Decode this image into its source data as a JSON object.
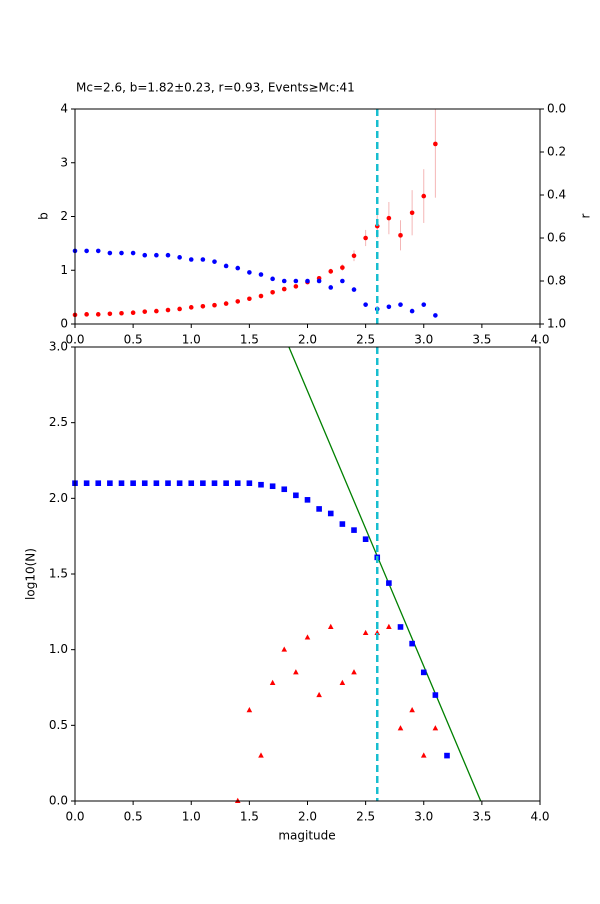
{
  "chart_data": [
    {
      "type": "scatter",
      "title": "Mc=2.6, b=1.82±0.23, r=0.93, Events≥Mc:41",
      "ylabel": "b",
      "y2label": "r",
      "xlim": [
        0,
        4
      ],
      "xticks": [
        {
          "value": 0,
          "label": "0.0"
        },
        {
          "value": 0.5,
          "label": "0.5"
        },
        {
          "value": 1,
          "label": "1.0"
        },
        {
          "value": 1.5,
          "label": "1.5"
        },
        {
          "value": 2,
          "label": "2.0"
        },
        {
          "value": 2.5,
          "label": "2.5"
        },
        {
          "value": 3,
          "label": "3.0"
        },
        {
          "value": 3.5,
          "label": "3.5"
        },
        {
          "value": 4,
          "label": "4.0"
        }
      ],
      "ylim": [
        0,
        4
      ],
      "yticks": [
        0,
        1,
        2,
        3,
        4
      ],
      "y2lim": [
        1,
        0
      ],
      "y2ticks": [
        {
          "value": 0,
          "label": "0.0"
        },
        {
          "value": 0.2,
          "label": "0.2"
        },
        {
          "value": 0.4,
          "label": "0.4"
        },
        {
          "value": 0.6,
          "label": "0.6"
        },
        {
          "value": 0.8,
          "label": "0.8"
        },
        {
          "value": 1,
          "label": "1.0"
        }
      ],
      "vline": 2.6,
      "vline_color": "#17becf",
      "series": [
        {
          "color": "#ff0000",
          "marker": "circle",
          "error_color": "#f4b6b6",
          "x": [
            0,
            0.1,
            0.2,
            0.3,
            0.4,
            0.5,
            0.6,
            0.7,
            0.8,
            0.9,
            1,
            1.1,
            1.2,
            1.3,
            1.4,
            1.5,
            1.6,
            1.7,
            1.8,
            1.9,
            2,
            2.1,
            2.2,
            2.3,
            2.4,
            2.5,
            2.6,
            2.7,
            2.8,
            2.9,
            3,
            3.1
          ],
          "values": [
            0.17,
            0.18,
            0.18,
            0.19,
            0.2,
            0.21,
            0.23,
            0.24,
            0.26,
            0.28,
            0.31,
            0.33,
            0.35,
            0.38,
            0.42,
            0.47,
            0.52,
            0.59,
            0.65,
            0.7,
            0.78,
            0.85,
            0.98,
            1.05,
            1.27,
            1.6,
            1.82,
            1.97,
            1.65,
            2.07,
            2.38,
            3.35
          ],
          "errors": [
            0.01,
            0.01,
            0.01,
            0.01,
            0.01,
            0.01,
            0.01,
            0.01,
            0.01,
            0.01,
            0.01,
            0.01,
            0.01,
            0.02,
            0.02,
            0.02,
            0.02,
            0.03,
            0.03,
            0.03,
            0.04,
            0.04,
            0.05,
            0.06,
            0.1,
            0.15,
            0.23,
            0.3,
            0.28,
            0.42,
            0.5,
            1.0
          ]
        },
        {
          "color": "#0000ff",
          "marker": "circle",
          "axis": "y2",
          "x": [
            0,
            0.1,
            0.2,
            0.3,
            0.4,
            0.5,
            0.6,
            0.7,
            0.8,
            0.9,
            1,
            1.1,
            1.2,
            1.3,
            1.4,
            1.5,
            1.6,
            1.7,
            1.8,
            1.9,
            2,
            2.1,
            2.2,
            2.3,
            2.4,
            2.5,
            2.6,
            2.7,
            2.8,
            2.9,
            3,
            3.1
          ],
          "values": [
            0.66,
            0.66,
            0.66,
            0.67,
            0.67,
            0.67,
            0.68,
            0.68,
            0.68,
            0.69,
            0.7,
            0.7,
            0.71,
            0.73,
            0.74,
            0.76,
            0.77,
            0.79,
            0.8,
            0.8,
            0.8,
            0.8,
            0.83,
            0.8,
            0.84,
            0.91,
            0.93,
            0.92,
            0.91,
            0.94,
            0.91,
            0.96
          ]
        }
      ]
    },
    {
      "type": "scatter",
      "xlabel": "magitude",
      "ylabel": "log10(N)",
      "xlim": [
        0,
        4
      ],
      "xticks": [
        {
          "value": 0,
          "label": "0.0"
        },
        {
          "value": 0.5,
          "label": "0.5"
        },
        {
          "value": 1,
          "label": "1.0"
        },
        {
          "value": 1.5,
          "label": "1.5"
        },
        {
          "value": 2,
          "label": "2.0"
        },
        {
          "value": 2.5,
          "label": "2.5"
        },
        {
          "value": 3,
          "label": "3.0"
        },
        {
          "value": 3.5,
          "label": "3.5"
        },
        {
          "value": 4,
          "label": "4.0"
        }
      ],
      "ylim": [
        0,
        3
      ],
      "yticks": [
        {
          "value": 0,
          "label": "0.0"
        },
        {
          "value": 0.5,
          "label": "0.5"
        },
        {
          "value": 1,
          "label": "1.0"
        },
        {
          "value": 1.5,
          "label": "1.5"
        },
        {
          "value": 2,
          "label": "2.0"
        },
        {
          "value": 2.5,
          "label": "2.5"
        },
        {
          "value": 3,
          "label": "3.0"
        }
      ],
      "vline": 2.6,
      "vline_color": "#17becf",
      "series": [
        {
          "color": "#0000ff",
          "marker": "square",
          "x": [
            0,
            0.1,
            0.2,
            0.3,
            0.4,
            0.5,
            0.6,
            0.7,
            0.8,
            0.9,
            1,
            1.1,
            1.2,
            1.3,
            1.4,
            1.5,
            1.6,
            1.7,
            1.8,
            1.9,
            2,
            2.1,
            2.2,
            2.3,
            2.4,
            2.5,
            2.6,
            2.7,
            2.8,
            2.9,
            3,
            3.1,
            3.2
          ],
          "values": [
            2.1,
            2.1,
            2.1,
            2.1,
            2.1,
            2.1,
            2.1,
            2.1,
            2.1,
            2.1,
            2.1,
            2.1,
            2.1,
            2.1,
            2.1,
            2.1,
            2.09,
            2.08,
            2.06,
            2.02,
            1.99,
            1.93,
            1.9,
            1.83,
            1.79,
            1.73,
            1.61,
            1.44,
            1.15,
            1.04,
            0.85,
            0.7,
            0.3
          ]
        },
        {
          "color": "#ff0000",
          "marker": "triangle",
          "x": [
            1.4,
            1.5,
            1.6,
            1.7,
            1.8,
            1.9,
            2,
            2.1,
            2.2,
            2.3,
            2.4,
            2.5,
            2.6,
            2.7,
            2.8,
            2.9,
            3,
            3.1
          ],
          "values": [
            0,
            0.6,
            0.3,
            0.78,
            1,
            0.85,
            1.08,
            0.7,
            1.15,
            0.78,
            0.85,
            1.11,
            1.11,
            1.15,
            0.48,
            0.6,
            0.3,
            0.48
          ]
        },
        {
          "color": "#008000",
          "marker": "line",
          "x": [
            1.84,
            3.49
          ],
          "values": [
            3,
            0
          ]
        }
      ]
    }
  ]
}
